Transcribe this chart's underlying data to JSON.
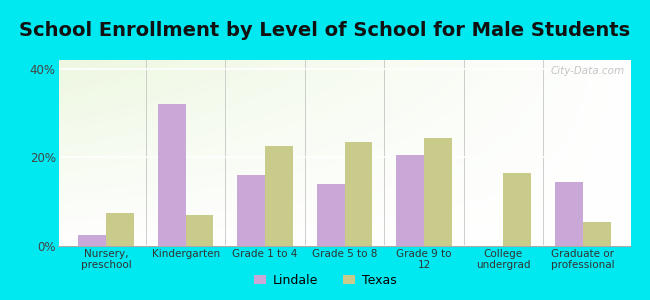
{
  "title": "School Enrollment by Level of School for Male Students",
  "categories": [
    "Nursery,\npreschool",
    "Kindergarten",
    "Grade 1 to 4",
    "Grade 5 to 8",
    "Grade 9 to\n12",
    "College\nundergrad",
    "Graduate or\nprofessional"
  ],
  "lindale": [
    2.5,
    32.0,
    16.0,
    14.0,
    20.5,
    0.0,
    14.5
  ],
  "texas": [
    7.5,
    7.0,
    22.5,
    23.5,
    24.5,
    16.5,
    5.5
  ],
  "lindale_color": "#c9a8d8",
  "texas_color": "#c8cb8a",
  "background_color": "#00e8f0",
  "ylim": [
    0,
    42
  ],
  "yticks": [
    0,
    20,
    40
  ],
  "ytick_labels": [
    "0%",
    "20%",
    "40%"
  ],
  "legend_labels": [
    "Lindale",
    "Texas"
  ],
  "bar_width": 0.35,
  "title_fontsize": 14,
  "watermark": "City-Data.com"
}
